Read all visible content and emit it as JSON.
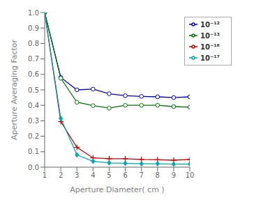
{
  "chart_data": {
    "type": "line",
    "x": [
      1,
      2,
      3,
      4,
      5,
      6,
      7,
      8,
      9,
      10
    ],
    "series": [
      {
        "name": "10⁻¹²",
        "color": "#0000cc",
        "marker": "circle",
        "values": [
          1.0,
          0.58,
          0.5,
          0.505,
          0.475,
          0.462,
          0.458,
          0.455,
          0.45,
          0.455
        ]
      },
      {
        "name": "10⁻¹³",
        "color": "#007700",
        "marker": "circle",
        "values": [
          1.0,
          0.575,
          0.42,
          0.398,
          0.382,
          0.4,
          0.4,
          0.4,
          0.392,
          0.388
        ]
      },
      {
        "name": "10⁻¹⁶",
        "color": "#cc0000",
        "marker": "plus",
        "values": [
          1.0,
          0.295,
          0.128,
          0.06,
          0.055,
          0.055,
          0.05,
          0.048,
          0.045,
          0.05
        ]
      },
      {
        "name": "10⁻¹⁷",
        "color": "#00aaaa",
        "marker": "diamond",
        "values": [
          1.0,
          0.315,
          0.08,
          0.038,
          0.028,
          0.025,
          0.022,
          0.022,
          0.02,
          0.02
        ]
      }
    ],
    "xlabel": "Aperture Diameter( cm )",
    "ylabel": "Aperture Averaging Factor",
    "xlim": [
      1,
      10
    ],
    "ylim": [
      0,
      1.0
    ],
    "xticks": [
      1,
      2,
      3,
      4,
      5,
      6,
      7,
      8,
      9,
      10
    ],
    "yticks": [
      {
        "value": 0,
        "label": "0.0"
      },
      0.1,
      0.2,
      0.3,
      0.4,
      0.5,
      0.6,
      0.7,
      0.8,
      0.9,
      {
        "value": 1,
        "label": "1.0"
      }
    ],
    "grid": false,
    "legend": "upper right"
  }
}
